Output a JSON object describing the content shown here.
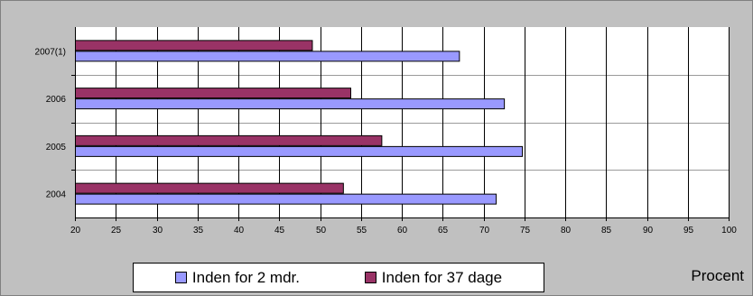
{
  "chart_data": {
    "type": "bar",
    "orientation": "horizontal",
    "categories": [
      "2007(1)",
      "2006",
      "2005",
      "2004"
    ],
    "series": [
      {
        "name": "Inden for 37 dage",
        "color": "#993366",
        "values": [
          49,
          53.7,
          57.5,
          52.8
        ]
      },
      {
        "name": "Inden for 2 mdr.",
        "color": "#9999ff",
        "values": [
          67,
          72.5,
          74.7,
          71.5
        ]
      }
    ],
    "xlim": [
      20,
      100
    ],
    "xticks": [
      20,
      25,
      30,
      35,
      40,
      45,
      50,
      55,
      60,
      65,
      70,
      75,
      80,
      85,
      90,
      95,
      100
    ],
    "unit_label": "Procent",
    "legend_order": [
      1,
      0
    ],
    "legend_position": "bottom",
    "grid": true,
    "plot_background": "#ffffff",
    "chart_background": "#c0c0c0"
  }
}
